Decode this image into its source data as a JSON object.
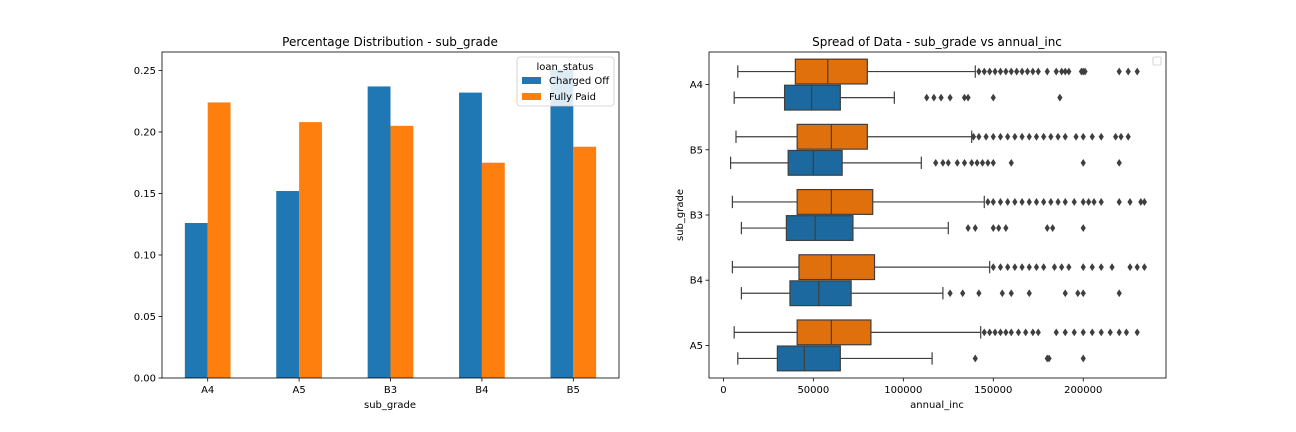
{
  "colors": {
    "charged_off": "#1f77b4",
    "fully_paid": "#ff7f0e"
  },
  "chart_data": [
    {
      "type": "bar",
      "title": "Percentage Distribution - sub_grade",
      "xlabel": "sub_grade",
      "ylabel": "",
      "categories": [
        "A4",
        "A5",
        "B3",
        "B4",
        "B5"
      ],
      "series": [
        {
          "name": "Charged Off",
          "values": [
            0.126,
            0.152,
            0.237,
            0.232,
            0.251
          ]
        },
        {
          "name": "Fully Paid",
          "values": [
            0.224,
            0.208,
            0.205,
            0.175,
            0.188
          ]
        }
      ],
      "ylim": [
        0,
        0.265
      ],
      "yticks": [
        "0.00",
        "0.05",
        "0.10",
        "0.15",
        "0.20",
        "0.25"
      ],
      "legend": {
        "title": "loan_status",
        "placement": "top-right"
      },
      "grid": false
    },
    {
      "type": "boxplot",
      "title": "Spread of Data - sub_grade vs annual_inc",
      "xlabel": "annual_inc",
      "ylabel": "sub_grade",
      "orientation": "horizontal",
      "categories": [
        "A4",
        "B5",
        "B3",
        "B4",
        "A5"
      ],
      "xlim": [
        -8000,
        246000
      ],
      "xticks": [
        "0",
        "50000",
        "100000",
        "150000",
        "200000"
      ],
      "legend": {
        "placement": "top-right",
        "entries": []
      },
      "grid": false,
      "boxes": [
        {
          "category": "A4",
          "hue": "Fully Paid",
          "whisker_low": 8000,
          "q1": 40000,
          "median": 58000,
          "q3": 80000,
          "whisker_high": 140000,
          "outliers": [
            142000,
            145000,
            148000,
            151000,
            154000,
            157000,
            160000,
            163000,
            166000,
            169000,
            172000,
            175000,
            180000,
            185000,
            188000,
            190000,
            192000,
            199000,
            200000,
            201000,
            220000,
            225000,
            230000
          ]
        },
        {
          "category": "A4",
          "hue": "Charged Off",
          "whisker_low": 6000,
          "q1": 34000,
          "median": 49000,
          "q3": 65000,
          "whisker_high": 95000,
          "outliers": [
            113000,
            117000,
            121000,
            126000,
            134000,
            136000,
            150000,
            187000
          ]
        },
        {
          "category": "B5",
          "hue": "Fully Paid",
          "whisker_low": 7000,
          "q1": 41000,
          "median": 60000,
          "q3": 80000,
          "whisker_high": 138000,
          "outliers": [
            139000,
            142000,
            146000,
            150000,
            154000,
            158000,
            162000,
            166000,
            170000,
            174000,
            178000,
            182000,
            186000,
            190000,
            196000,
            200000,
            205000,
            210000,
            218000,
            221000,
            225000
          ]
        },
        {
          "category": "B5",
          "hue": "Charged Off",
          "whisker_low": 4000,
          "q1": 36000,
          "median": 50000,
          "q3": 66000,
          "whisker_high": 110000,
          "outliers": [
            118000,
            122000,
            125000,
            130000,
            134000,
            138000,
            141000,
            144000,
            147000,
            150000,
            160000,
            200000,
            220000
          ]
        },
        {
          "category": "B3",
          "hue": "Fully Paid",
          "whisker_low": 5000,
          "q1": 41000,
          "median": 60000,
          "q3": 83000,
          "whisker_high": 145000,
          "outliers": [
            147000,
            150000,
            154000,
            158000,
            162000,
            166000,
            170000,
            174000,
            178000,
            182000,
            186000,
            190000,
            195000,
            200000,
            203000,
            206000,
            210000,
            220000,
            226000,
            232000,
            234000
          ]
        },
        {
          "category": "B3",
          "hue": "Charged Off",
          "whisker_low": 10000,
          "q1": 35000,
          "median": 51000,
          "q3": 72000,
          "whisker_high": 125000,
          "outliers": [
            136000,
            140000,
            150000,
            153000,
            157000,
            180000,
            183000,
            200000
          ]
        },
        {
          "category": "B4",
          "hue": "Fully Paid",
          "whisker_low": 5000,
          "q1": 42000,
          "median": 60000,
          "q3": 84000,
          "whisker_high": 148000,
          "outliers": [
            150000,
            154000,
            158000,
            162000,
            166000,
            170000,
            174000,
            178000,
            184000,
            188000,
            192000,
            200000,
            205000,
            210000,
            216000,
            226000,
            230000,
            234000
          ]
        },
        {
          "category": "B4",
          "hue": "Charged Off",
          "whisker_low": 10000,
          "q1": 37000,
          "median": 53000,
          "q3": 71000,
          "whisker_high": 122000,
          "outliers": [
            126000,
            133000,
            142000,
            155000,
            160000,
            170000,
            190000,
            197000,
            200000,
            220000
          ]
        },
        {
          "category": "A5",
          "hue": "Fully Paid",
          "whisker_low": 6000,
          "q1": 41000,
          "median": 60000,
          "q3": 82000,
          "whisker_high": 143000,
          "outliers": [
            145000,
            148000,
            151000,
            154000,
            157000,
            160000,
            164000,
            168000,
            172000,
            175000,
            185000,
            190000,
            195000,
            200000,
            205000,
            210000,
            215000,
            220000,
            224000,
            230000
          ]
        },
        {
          "category": "A5",
          "hue": "Charged Off",
          "whisker_low": 8000,
          "q1": 30000,
          "median": 45000,
          "q3": 65000,
          "whisker_high": 116000,
          "outliers": [
            140000,
            180000,
            181000,
            200000
          ]
        }
      ]
    }
  ]
}
